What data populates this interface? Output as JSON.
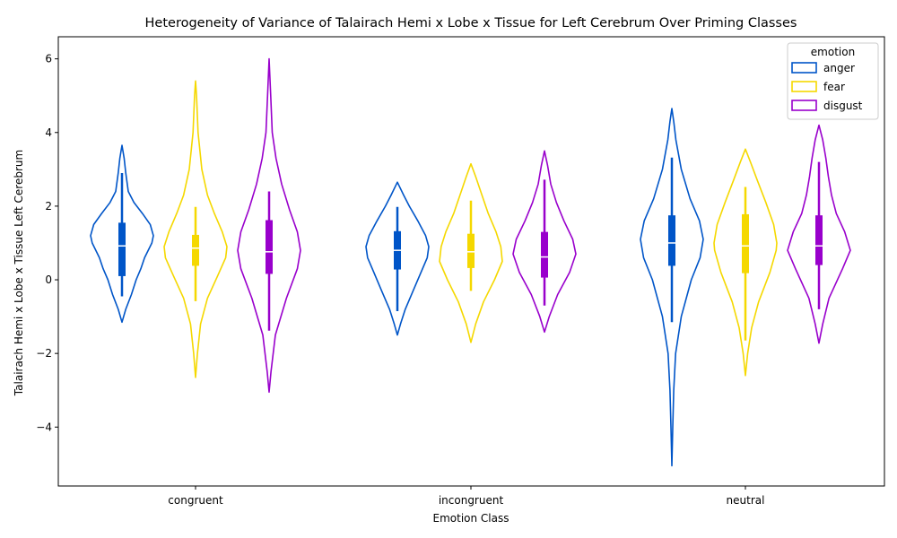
{
  "chart_data": {
    "type": "violin",
    "title": "Heterogeneity of Variance of Talairach Hemi x Lobe x Tissue for Left Cerebrum Over Priming Classes",
    "xlabel": "Emotion Class",
    "ylabel": "Talairach Hemi x Lobe x Tissue Left Cerebrum",
    "categories": [
      "congruent",
      "incongruent",
      "neutral"
    ],
    "ylim": [
      -5.6,
      6.6
    ],
    "yticks": [
      -4,
      -2,
      0,
      2,
      4,
      6
    ],
    "legend": {
      "title": "emotion",
      "placement": "top-right"
    },
    "series": [
      {
        "name": "anger",
        "color": "#0055c8",
        "violins": [
          {
            "min": -1.15,
            "max": 3.65,
            "q1": 0.1,
            "median": 0.92,
            "q3": 1.55,
            "whisker_low": -0.45,
            "whisker_high": 2.9,
            "profile": [
              [
                -1.15,
                0
              ],
              [
                -0.8,
                0.12
              ],
              [
                -0.4,
                0.3
              ],
              [
                0.0,
                0.45
              ],
              [
                0.3,
                0.6
              ],
              [
                0.6,
                0.72
              ],
              [
                1.0,
                0.95
              ],
              [
                1.2,
                1.0
              ],
              [
                1.5,
                0.9
              ],
              [
                1.8,
                0.65
              ],
              [
                2.1,
                0.38
              ],
              [
                2.4,
                0.2
              ],
              [
                2.9,
                0.12
              ],
              [
                3.3,
                0.07
              ],
              [
                3.65,
                0
              ]
            ]
          },
          {
            "min": -1.5,
            "max": 2.65,
            "q1": 0.28,
            "median": 0.8,
            "q3": 1.32,
            "whisker_low": -0.85,
            "whisker_high": 1.98,
            "profile": [
              [
                -1.5,
                0
              ],
              [
                -1.2,
                0.1
              ],
              [
                -0.8,
                0.25
              ],
              [
                -0.3,
                0.5
              ],
              [
                0.2,
                0.75
              ],
              [
                0.6,
                0.95
              ],
              [
                0.9,
                1.0
              ],
              [
                1.2,
                0.9
              ],
              [
                1.6,
                0.65
              ],
              [
                2.0,
                0.38
              ],
              [
                2.3,
                0.2
              ],
              [
                2.65,
                0
              ]
            ]
          },
          {
            "min": -5.05,
            "max": 4.65,
            "q1": 0.38,
            "median": 1.0,
            "q3": 1.75,
            "whisker_low": -1.15,
            "whisker_high": 3.32,
            "profile": [
              [
                -5.05,
                0
              ],
              [
                -4.0,
                0.03
              ],
              [
                -3.0,
                0.06
              ],
              [
                -2.0,
                0.12
              ],
              [
                -1.0,
                0.3
              ],
              [
                0.0,
                0.62
              ],
              [
                0.6,
                0.9
              ],
              [
                1.1,
                1.0
              ],
              [
                1.6,
                0.88
              ],
              [
                2.2,
                0.58
              ],
              [
                3.0,
                0.3
              ],
              [
                3.8,
                0.13
              ],
              [
                4.3,
                0.06
              ],
              [
                4.65,
                0
              ]
            ]
          }
        ]
      },
      {
        "name": "fear",
        "color": "#f5d800",
        "violins": [
          {
            "min": -2.65,
            "max": 5.4,
            "q1": 0.38,
            "median": 0.86,
            "q3": 1.22,
            "whisker_low": -0.58,
            "whisker_high": 1.98,
            "profile": [
              [
                -2.65,
                0
              ],
              [
                -2.0,
                0.06
              ],
              [
                -1.2,
                0.16
              ],
              [
                -0.5,
                0.38
              ],
              [
                0.1,
                0.7
              ],
              [
                0.6,
                0.96
              ],
              [
                0.9,
                1.0
              ],
              [
                1.3,
                0.85
              ],
              [
                1.8,
                0.6
              ],
              [
                2.3,
                0.38
              ],
              [
                3.0,
                0.2
              ],
              [
                4.0,
                0.08
              ],
              [
                5.0,
                0.03
              ],
              [
                5.4,
                0
              ]
            ]
          },
          {
            "min": -1.7,
            "max": 3.15,
            "q1": 0.32,
            "median": 0.76,
            "q3": 1.25,
            "whisker_low": -0.3,
            "whisker_high": 2.15,
            "profile": [
              [
                -1.7,
                0
              ],
              [
                -1.2,
                0.15
              ],
              [
                -0.6,
                0.4
              ],
              [
                0.0,
                0.75
              ],
              [
                0.5,
                1.0
              ],
              [
                0.9,
                0.95
              ],
              [
                1.3,
                0.8
              ],
              [
                1.8,
                0.55
              ],
              [
                2.3,
                0.35
              ],
              [
                2.8,
                0.15
              ],
              [
                3.15,
                0
              ]
            ]
          },
          {
            "min": -2.6,
            "max": 3.55,
            "q1": 0.18,
            "median": 0.92,
            "q3": 1.78,
            "whisker_low": -1.65,
            "whisker_high": 2.52,
            "profile": [
              [
                -2.6,
                0
              ],
              [
                -2.0,
                0.07
              ],
              [
                -1.3,
                0.2
              ],
              [
                -0.6,
                0.42
              ],
              [
                0.2,
                0.78
              ],
              [
                0.8,
                0.98
              ],
              [
                1.0,
                1.0
              ],
              [
                1.5,
                0.9
              ],
              [
                2.1,
                0.65
              ],
              [
                2.7,
                0.38
              ],
              [
                3.2,
                0.16
              ],
              [
                3.55,
                0
              ]
            ]
          }
        ]
      },
      {
        "name": "disgust",
        "color": "#9900cc",
        "violins": [
          {
            "min": -3.05,
            "max": 6.0,
            "q1": 0.16,
            "median": 0.76,
            "q3": 1.62,
            "whisker_low": -1.38,
            "whisker_high": 2.4,
            "profile": [
              [
                -3.05,
                0
              ],
              [
                -2.5,
                0.06
              ],
              [
                -1.5,
                0.2
              ],
              [
                -0.5,
                0.55
              ],
              [
                0.3,
                0.9
              ],
              [
                0.8,
                1.0
              ],
              [
                1.3,
                0.9
              ],
              [
                1.9,
                0.65
              ],
              [
                2.6,
                0.4
              ],
              [
                3.3,
                0.22
              ],
              [
                4.0,
                0.1
              ],
              [
                5.0,
                0.05
              ],
              [
                6.0,
                0
              ]
            ]
          },
          {
            "min": -1.42,
            "max": 3.5,
            "q1": 0.06,
            "median": 0.62,
            "q3": 1.3,
            "whisker_low": -0.7,
            "whisker_high": 2.72,
            "profile": [
              [
                -1.42,
                0
              ],
              [
                -1.0,
                0.15
              ],
              [
                -0.4,
                0.42
              ],
              [
                0.2,
                0.8
              ],
              [
                0.7,
                1.0
              ],
              [
                1.1,
                0.9
              ],
              [
                1.6,
                0.62
              ],
              [
                2.1,
                0.38
              ],
              [
                2.6,
                0.2
              ],
              [
                3.1,
                0.1
              ],
              [
                3.5,
                0
              ]
            ]
          },
          {
            "min": -1.72,
            "max": 4.2,
            "q1": 0.4,
            "median": 0.92,
            "q3": 1.75,
            "whisker_low": -0.8,
            "whisker_high": 3.2,
            "profile": [
              [
                -1.72,
                0
              ],
              [
                -1.2,
                0.12
              ],
              [
                -0.5,
                0.32
              ],
              [
                0.3,
                0.75
              ],
              [
                0.8,
                1.0
              ],
              [
                1.3,
                0.82
              ],
              [
                1.8,
                0.55
              ],
              [
                2.3,
                0.4
              ],
              [
                2.8,
                0.3
              ],
              [
                3.3,
                0.22
              ],
              [
                3.8,
                0.12
              ],
              [
                4.2,
                0
              ]
            ]
          }
        ]
      }
    ]
  }
}
